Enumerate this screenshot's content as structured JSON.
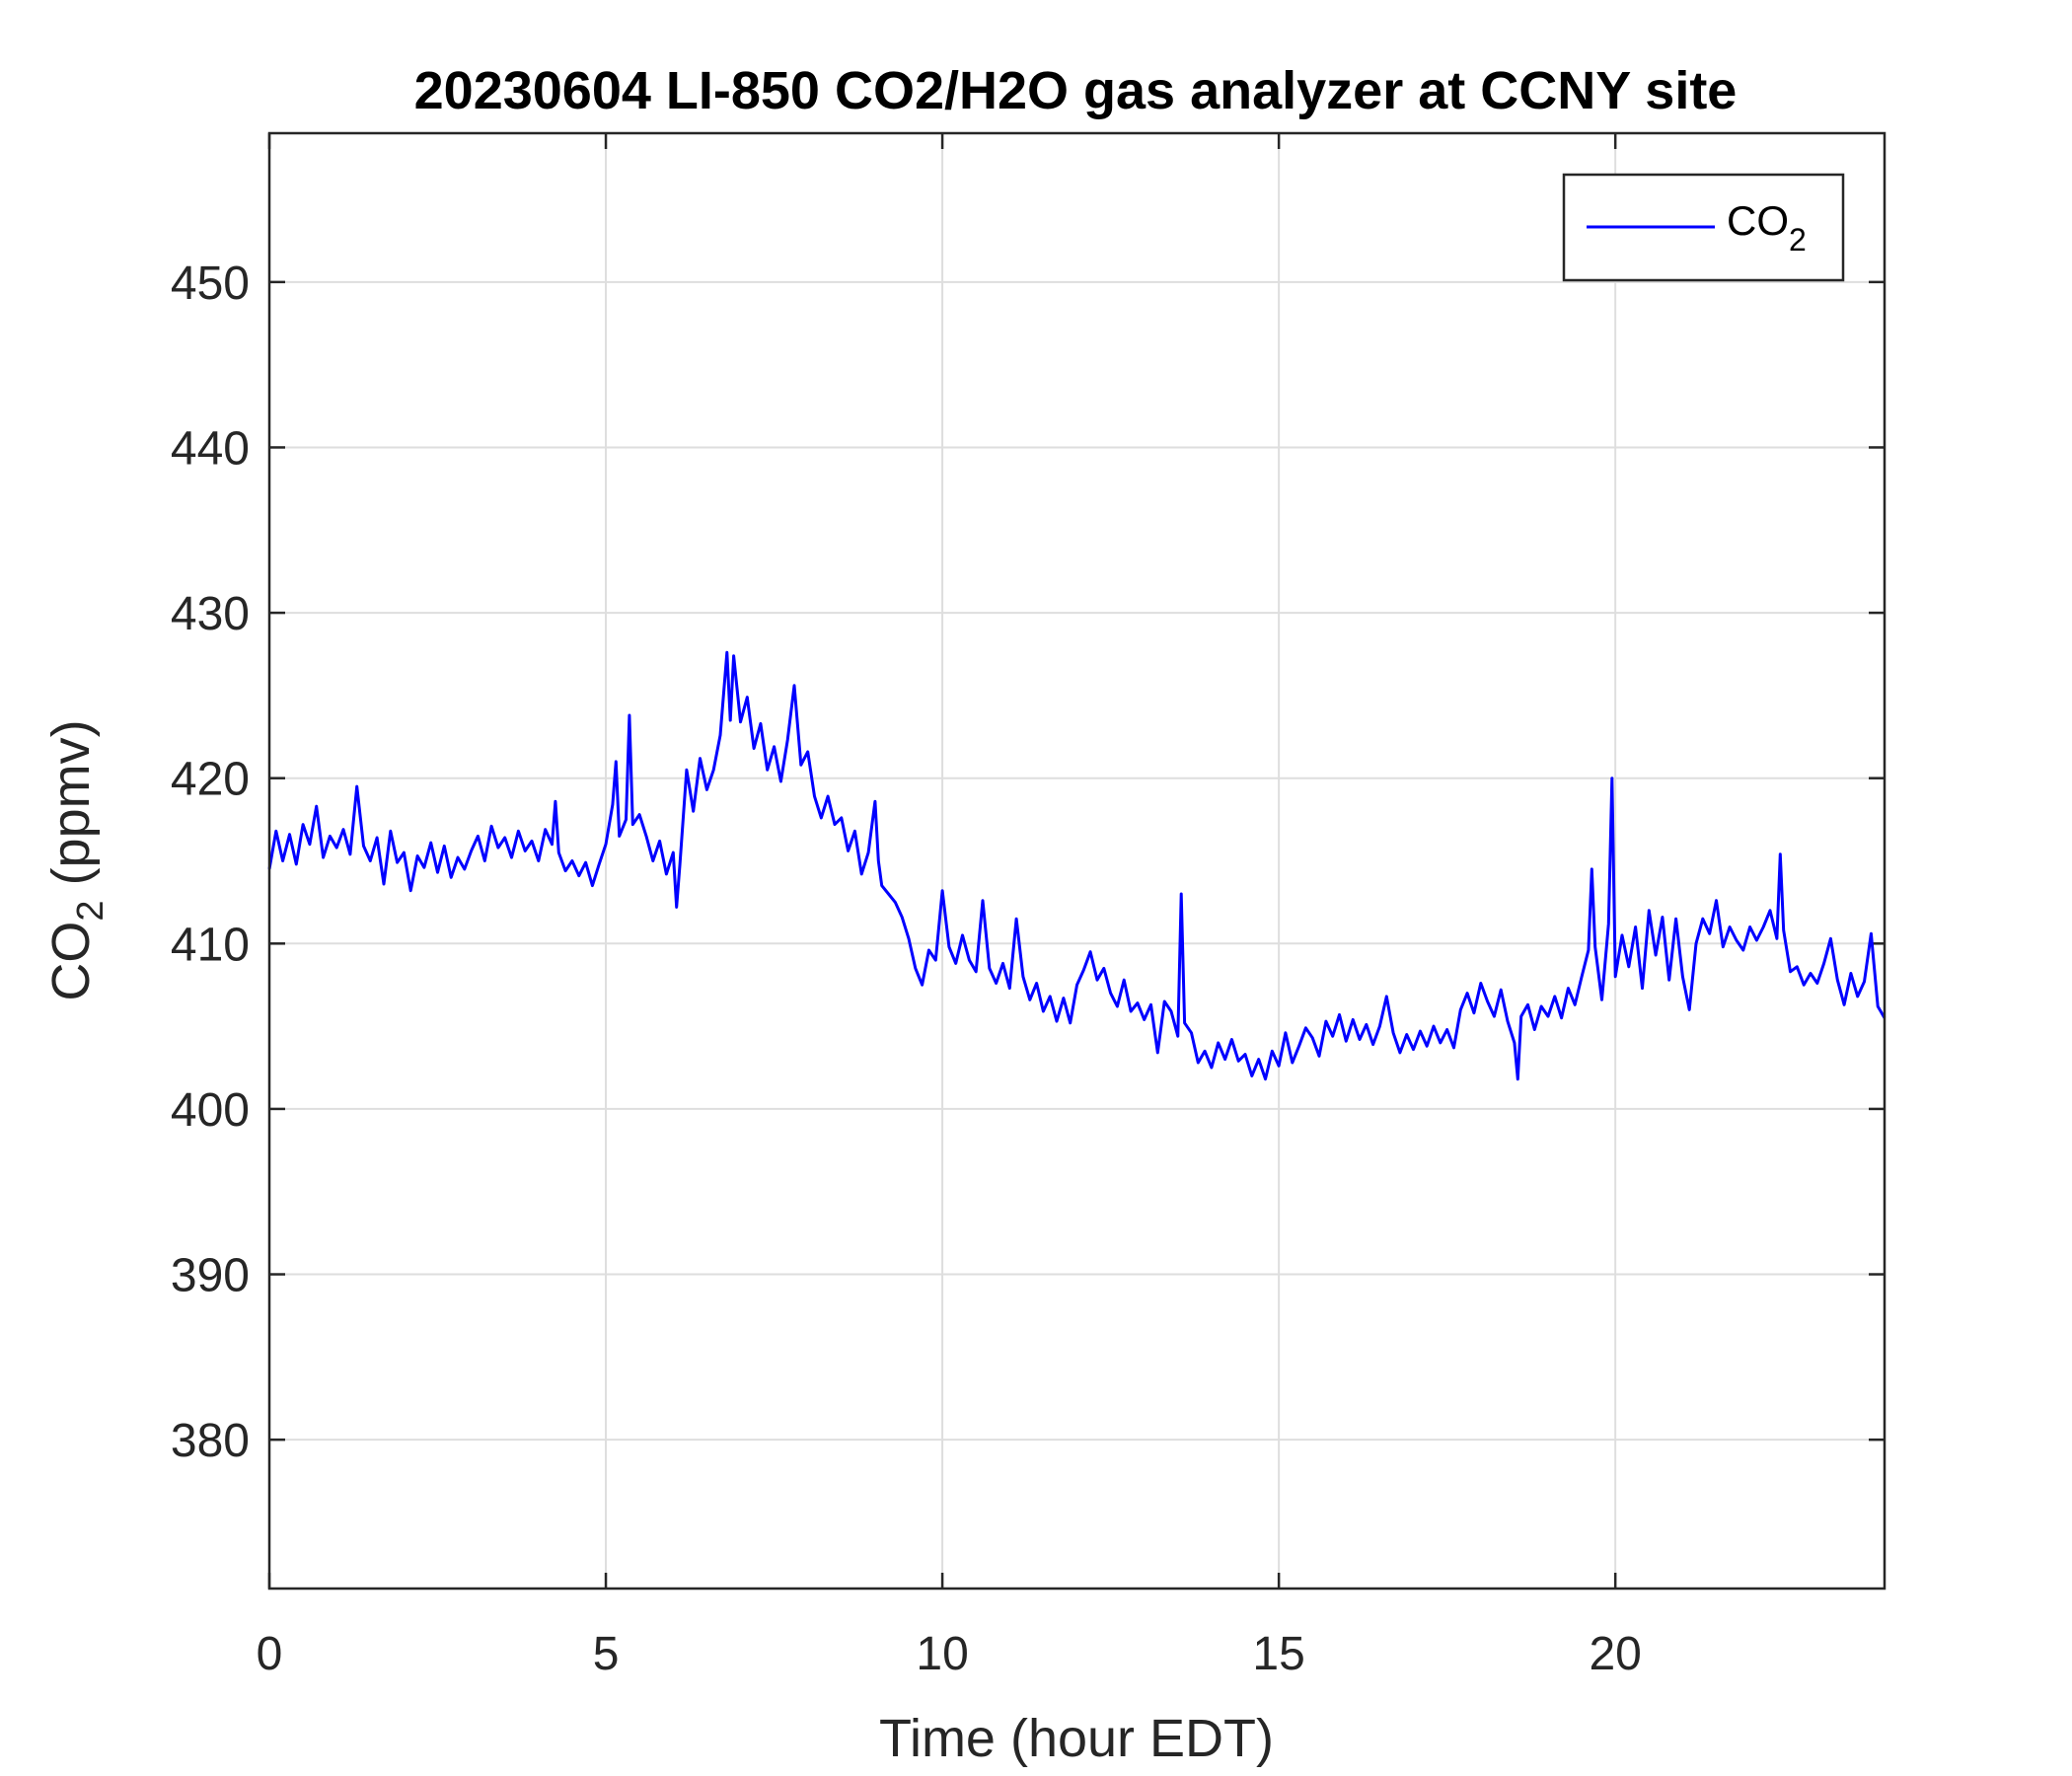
{
  "chart_data": {
    "type": "line",
    "title": "20230604 LI-850 CO2/H2O gas analyzer at CCNY site",
    "xlabel": {
      "text": "Time (hour EDT)"
    },
    "ylabel": {
      "prefix": "CO",
      "subscript": "2",
      "suffix": " (ppmv)"
    },
    "xlim": [
      0,
      24
    ],
    "ylim": [
      371,
      459
    ],
    "xticks": [
      0,
      5,
      10,
      15,
      20
    ],
    "yticks": [
      380,
      390,
      400,
      410,
      420,
      430,
      440,
      450
    ],
    "grid": true,
    "legend": {
      "placement": "top-right",
      "entries": [
        {
          "prefix": "CO",
          "subscript": "2"
        }
      ]
    },
    "series": [
      {
        "name": "CO2",
        "color": "#0000ff",
        "points": [
          [
            0.0,
            414.5
          ],
          [
            0.1,
            416.8
          ],
          [
            0.2,
            415.0
          ],
          [
            0.3,
            416.6
          ],
          [
            0.4,
            414.8
          ],
          [
            0.5,
            417.2
          ],
          [
            0.6,
            416.0
          ],
          [
            0.7,
            418.3
          ],
          [
            0.8,
            415.2
          ],
          [
            0.9,
            416.5
          ],
          [
            1.0,
            415.8
          ],
          [
            1.1,
            416.9
          ],
          [
            1.2,
            415.4
          ],
          [
            1.3,
            419.5
          ],
          [
            1.4,
            415.9
          ],
          [
            1.5,
            415.0
          ],
          [
            1.6,
            416.4
          ],
          [
            1.7,
            413.6
          ],
          [
            1.8,
            416.8
          ],
          [
            1.9,
            414.9
          ],
          [
            2.0,
            415.5
          ],
          [
            2.1,
            413.2
          ],
          [
            2.2,
            415.3
          ],
          [
            2.3,
            414.6
          ],
          [
            2.4,
            416.1
          ],
          [
            2.5,
            414.3
          ],
          [
            2.6,
            415.9
          ],
          [
            2.7,
            414.0
          ],
          [
            2.8,
            415.2
          ],
          [
            2.9,
            414.5
          ],
          [
            3.0,
            415.6
          ],
          [
            3.1,
            416.5
          ],
          [
            3.2,
            415.0
          ],
          [
            3.3,
            417.1
          ],
          [
            3.4,
            415.8
          ],
          [
            3.5,
            416.4
          ],
          [
            3.6,
            415.2
          ],
          [
            3.7,
            416.8
          ],
          [
            3.8,
            415.6
          ],
          [
            3.9,
            416.2
          ],
          [
            4.0,
            415.0
          ],
          [
            4.1,
            416.9
          ],
          [
            4.2,
            416.0
          ],
          [
            4.25,
            418.6
          ],
          [
            4.3,
            415.5
          ],
          [
            4.4,
            414.4
          ],
          [
            4.5,
            415.0
          ],
          [
            4.6,
            414.1
          ],
          [
            4.7,
            414.9
          ],
          [
            4.8,
            413.5
          ],
          [
            4.9,
            414.8
          ],
          [
            5.0,
            416.0
          ],
          [
            5.1,
            418.4
          ],
          [
            5.15,
            421.0
          ],
          [
            5.2,
            416.5
          ],
          [
            5.3,
            417.5
          ],
          [
            5.35,
            423.8
          ],
          [
            5.4,
            417.2
          ],
          [
            5.5,
            417.8
          ],
          [
            5.6,
            416.5
          ],
          [
            5.7,
            415.0
          ],
          [
            5.8,
            416.2
          ],
          [
            5.9,
            414.2
          ],
          [
            6.0,
            415.5
          ],
          [
            6.05,
            412.2
          ],
          [
            6.1,
            414.8
          ],
          [
            6.2,
            420.5
          ],
          [
            6.3,
            418.0
          ],
          [
            6.4,
            421.2
          ],
          [
            6.5,
            419.3
          ],
          [
            6.6,
            420.5
          ],
          [
            6.7,
            422.6
          ],
          [
            6.8,
            427.6
          ],
          [
            6.85,
            423.5
          ],
          [
            6.9,
            427.4
          ],
          [
            7.0,
            423.4
          ],
          [
            7.1,
            424.9
          ],
          [
            7.2,
            421.8
          ],
          [
            7.3,
            423.3
          ],
          [
            7.4,
            420.5
          ],
          [
            7.5,
            421.9
          ],
          [
            7.6,
            419.8
          ],
          [
            7.7,
            422.3
          ],
          [
            7.8,
            425.6
          ],
          [
            7.9,
            420.8
          ],
          [
            8.0,
            421.6
          ],
          [
            8.1,
            418.9
          ],
          [
            8.2,
            417.6
          ],
          [
            8.3,
            418.9
          ],
          [
            8.4,
            417.2
          ],
          [
            8.5,
            417.6
          ],
          [
            8.6,
            415.6
          ],
          [
            8.7,
            416.8
          ],
          [
            8.8,
            414.2
          ],
          [
            8.9,
            415.5
          ],
          [
            9.0,
            418.6
          ],
          [
            9.05,
            415.0
          ],
          [
            9.1,
            413.5
          ],
          [
            9.2,
            413.0
          ],
          [
            9.3,
            412.5
          ],
          [
            9.4,
            411.6
          ],
          [
            9.5,
            410.3
          ],
          [
            9.6,
            408.5
          ],
          [
            9.7,
            407.5
          ],
          [
            9.8,
            409.6
          ],
          [
            9.9,
            409.0
          ],
          [
            10.0,
            413.2
          ],
          [
            10.1,
            409.8
          ],
          [
            10.2,
            408.8
          ],
          [
            10.3,
            410.5
          ],
          [
            10.4,
            409.0
          ],
          [
            10.5,
            408.3
          ],
          [
            10.6,
            412.6
          ],
          [
            10.7,
            408.5
          ],
          [
            10.8,
            407.6
          ],
          [
            10.9,
            408.8
          ],
          [
            11.0,
            407.3
          ],
          [
            11.1,
            411.5
          ],
          [
            11.2,
            408.0
          ],
          [
            11.3,
            406.6
          ],
          [
            11.4,
            407.6
          ],
          [
            11.5,
            405.9
          ],
          [
            11.6,
            406.8
          ],
          [
            11.7,
            405.3
          ],
          [
            11.8,
            406.7
          ],
          [
            11.9,
            405.2
          ],
          [
            12.0,
            407.5
          ],
          [
            12.1,
            408.4
          ],
          [
            12.2,
            409.5
          ],
          [
            12.3,
            407.8
          ],
          [
            12.4,
            408.5
          ],
          [
            12.5,
            407.0
          ],
          [
            12.6,
            406.2
          ],
          [
            12.7,
            407.8
          ],
          [
            12.8,
            405.9
          ],
          [
            12.9,
            406.4
          ],
          [
            13.0,
            405.4
          ],
          [
            13.1,
            406.3
          ],
          [
            13.2,
            403.4
          ],
          [
            13.3,
            406.5
          ],
          [
            13.4,
            405.9
          ],
          [
            13.5,
            404.4
          ],
          [
            13.55,
            413.0
          ],
          [
            13.6,
            405.2
          ],
          [
            13.7,
            404.6
          ],
          [
            13.8,
            402.8
          ],
          [
            13.9,
            403.5
          ],
          [
            14.0,
            402.5
          ],
          [
            14.1,
            404.0
          ],
          [
            14.2,
            403.0
          ],
          [
            14.3,
            404.2
          ],
          [
            14.4,
            402.9
          ],
          [
            14.5,
            403.3
          ],
          [
            14.6,
            402.0
          ],
          [
            14.7,
            403.0
          ],
          [
            14.8,
            401.8
          ],
          [
            14.9,
            403.5
          ],
          [
            15.0,
            402.6
          ],
          [
            15.1,
            404.6
          ],
          [
            15.2,
            402.8
          ],
          [
            15.3,
            403.8
          ],
          [
            15.4,
            404.9
          ],
          [
            15.5,
            404.3
          ],
          [
            15.6,
            403.2
          ],
          [
            15.7,
            405.3
          ],
          [
            15.8,
            404.4
          ],
          [
            15.9,
            405.7
          ],
          [
            16.0,
            404.1
          ],
          [
            16.1,
            405.4
          ],
          [
            16.2,
            404.2
          ],
          [
            16.3,
            405.1
          ],
          [
            16.4,
            403.9
          ],
          [
            16.5,
            405.0
          ],
          [
            16.6,
            406.8
          ],
          [
            16.7,
            404.6
          ],
          [
            16.8,
            403.4
          ],
          [
            16.9,
            404.5
          ],
          [
            17.0,
            403.6
          ],
          [
            17.1,
            404.7
          ],
          [
            17.2,
            403.8
          ],
          [
            17.3,
            405.0
          ],
          [
            17.4,
            404.0
          ],
          [
            17.5,
            404.8
          ],
          [
            17.6,
            403.7
          ],
          [
            17.7,
            406.0
          ],
          [
            17.8,
            407.0
          ],
          [
            17.9,
            405.8
          ],
          [
            18.0,
            407.6
          ],
          [
            18.1,
            406.5
          ],
          [
            18.2,
            405.6
          ],
          [
            18.3,
            407.2
          ],
          [
            18.4,
            405.3
          ],
          [
            18.5,
            404.0
          ],
          [
            18.55,
            401.8
          ],
          [
            18.6,
            405.6
          ],
          [
            18.7,
            406.3
          ],
          [
            18.8,
            404.8
          ],
          [
            18.9,
            406.2
          ],
          [
            19.0,
            405.6
          ],
          [
            19.1,
            406.8
          ],
          [
            19.2,
            405.5
          ],
          [
            19.3,
            407.3
          ],
          [
            19.4,
            406.3
          ],
          [
            19.5,
            408.0
          ],
          [
            19.6,
            409.6
          ],
          [
            19.65,
            414.5
          ],
          [
            19.7,
            409.8
          ],
          [
            19.8,
            406.6
          ],
          [
            19.9,
            411.2
          ],
          [
            19.95,
            420.0
          ],
          [
            20.0,
            408.0
          ],
          [
            20.1,
            410.5
          ],
          [
            20.2,
            408.6
          ],
          [
            20.3,
            411.0
          ],
          [
            20.4,
            407.3
          ],
          [
            20.5,
            412.0
          ],
          [
            20.6,
            409.3
          ],
          [
            20.7,
            411.6
          ],
          [
            20.8,
            407.8
          ],
          [
            20.9,
            411.5
          ],
          [
            21.0,
            408.0
          ],
          [
            21.1,
            406.0
          ],
          [
            21.2,
            410.0
          ],
          [
            21.3,
            411.5
          ],
          [
            21.4,
            410.6
          ],
          [
            21.5,
            412.6
          ],
          [
            21.6,
            409.8
          ],
          [
            21.7,
            411.0
          ],
          [
            21.8,
            410.2
          ],
          [
            21.9,
            409.6
          ],
          [
            22.0,
            411.0
          ],
          [
            22.1,
            410.2
          ],
          [
            22.2,
            411.0
          ],
          [
            22.3,
            412.0
          ],
          [
            22.4,
            410.3
          ],
          [
            22.45,
            415.4
          ],
          [
            22.5,
            410.8
          ],
          [
            22.6,
            408.3
          ],
          [
            22.7,
            408.6
          ],
          [
            22.8,
            407.5
          ],
          [
            22.9,
            408.2
          ],
          [
            23.0,
            407.6
          ],
          [
            23.1,
            408.8
          ],
          [
            23.2,
            410.3
          ],
          [
            23.3,
            407.8
          ],
          [
            23.4,
            406.3
          ],
          [
            23.5,
            408.2
          ],
          [
            23.6,
            406.8
          ],
          [
            23.7,
            407.7
          ],
          [
            23.8,
            410.6
          ],
          [
            23.9,
            406.2
          ],
          [
            24.0,
            405.5
          ]
        ]
      }
    ]
  }
}
